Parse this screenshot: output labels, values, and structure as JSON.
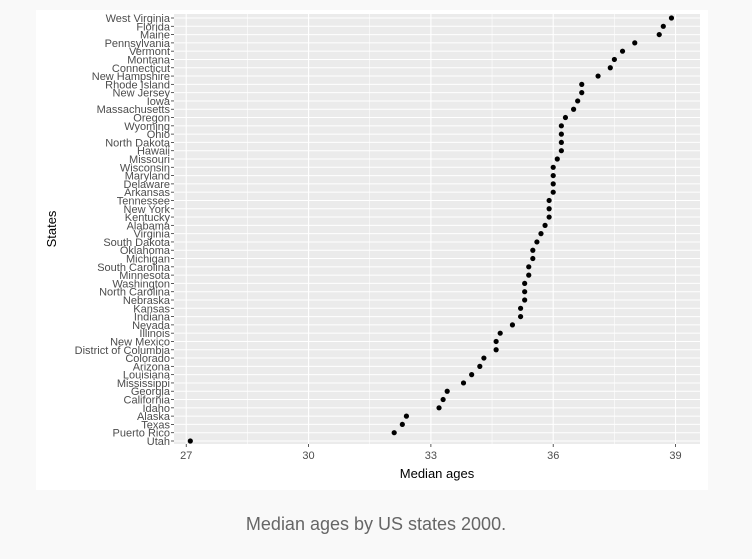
{
  "caption": "Median ages by US states 2000.",
  "chart_data": {
    "type": "scatter",
    "xlabel": "Median ages",
    "ylabel": "States",
    "xlim": [
      26.7,
      39.6
    ],
    "xticks": [
      27,
      30,
      33,
      36,
      39
    ],
    "grid": true,
    "panel_background": "#ebebeb",
    "point_color": "#000000",
    "points": [
      {
        "state": "West Virginia",
        "age": 38.9
      },
      {
        "state": "Florida",
        "age": 38.7
      },
      {
        "state": "Maine",
        "age": 38.6
      },
      {
        "state": "Pennsylvania",
        "age": 38.0
      },
      {
        "state": "Vermont",
        "age": 37.7
      },
      {
        "state": "Montana",
        "age": 37.5
      },
      {
        "state": "Connecticut",
        "age": 37.4
      },
      {
        "state": "New Hampshire",
        "age": 37.1
      },
      {
        "state": "Rhode Island",
        "age": 36.7
      },
      {
        "state": "New Jersey",
        "age": 36.7
      },
      {
        "state": "Iowa",
        "age": 36.6
      },
      {
        "state": "Massachusetts",
        "age": 36.5
      },
      {
        "state": "Oregon",
        "age": 36.3
      },
      {
        "state": "Wyoming",
        "age": 36.2
      },
      {
        "state": "Ohio",
        "age": 36.2
      },
      {
        "state": "North Dakota",
        "age": 36.2
      },
      {
        "state": "Hawaii",
        "age": 36.2
      },
      {
        "state": "Missouri",
        "age": 36.1
      },
      {
        "state": "Wisconsin",
        "age": 36.0
      },
      {
        "state": "Maryland",
        "age": 36.0
      },
      {
        "state": "Delaware",
        "age": 36.0
      },
      {
        "state": "Arkansas",
        "age": 36.0
      },
      {
        "state": "Tennessee",
        "age": 35.9
      },
      {
        "state": "New York",
        "age": 35.9
      },
      {
        "state": "Kentucky",
        "age": 35.9
      },
      {
        "state": "Alabama",
        "age": 35.8
      },
      {
        "state": "Virginia",
        "age": 35.7
      },
      {
        "state": "South Dakota",
        "age": 35.6
      },
      {
        "state": "Oklahoma",
        "age": 35.5
      },
      {
        "state": "Michigan",
        "age": 35.5
      },
      {
        "state": "South Carolina",
        "age": 35.4
      },
      {
        "state": "Minnesota",
        "age": 35.4
      },
      {
        "state": "Washington",
        "age": 35.3
      },
      {
        "state": "North Carolina",
        "age": 35.3
      },
      {
        "state": "Nebraska",
        "age": 35.3
      },
      {
        "state": "Kansas",
        "age": 35.2
      },
      {
        "state": "Indiana",
        "age": 35.2
      },
      {
        "state": "Nevada",
        "age": 35.0
      },
      {
        "state": "Illinois",
        "age": 34.7
      },
      {
        "state": "New Mexico",
        "age": 34.6
      },
      {
        "state": "District of Columbia",
        "age": 34.6
      },
      {
        "state": "Colorado",
        "age": 34.3
      },
      {
        "state": "Arizona",
        "age": 34.2
      },
      {
        "state": "Louisiana",
        "age": 34.0
      },
      {
        "state": "Mississippi",
        "age": 33.8
      },
      {
        "state": "Georgia",
        "age": 33.4
      },
      {
        "state": "California",
        "age": 33.3
      },
      {
        "state": "Idaho",
        "age": 33.2
      },
      {
        "state": "Alaska",
        "age": 32.4
      },
      {
        "state": "Texas",
        "age": 32.3
      },
      {
        "state": "Puerto Rico",
        "age": 32.1
      },
      {
        "state": "Utah",
        "age": 27.1
      }
    ]
  }
}
